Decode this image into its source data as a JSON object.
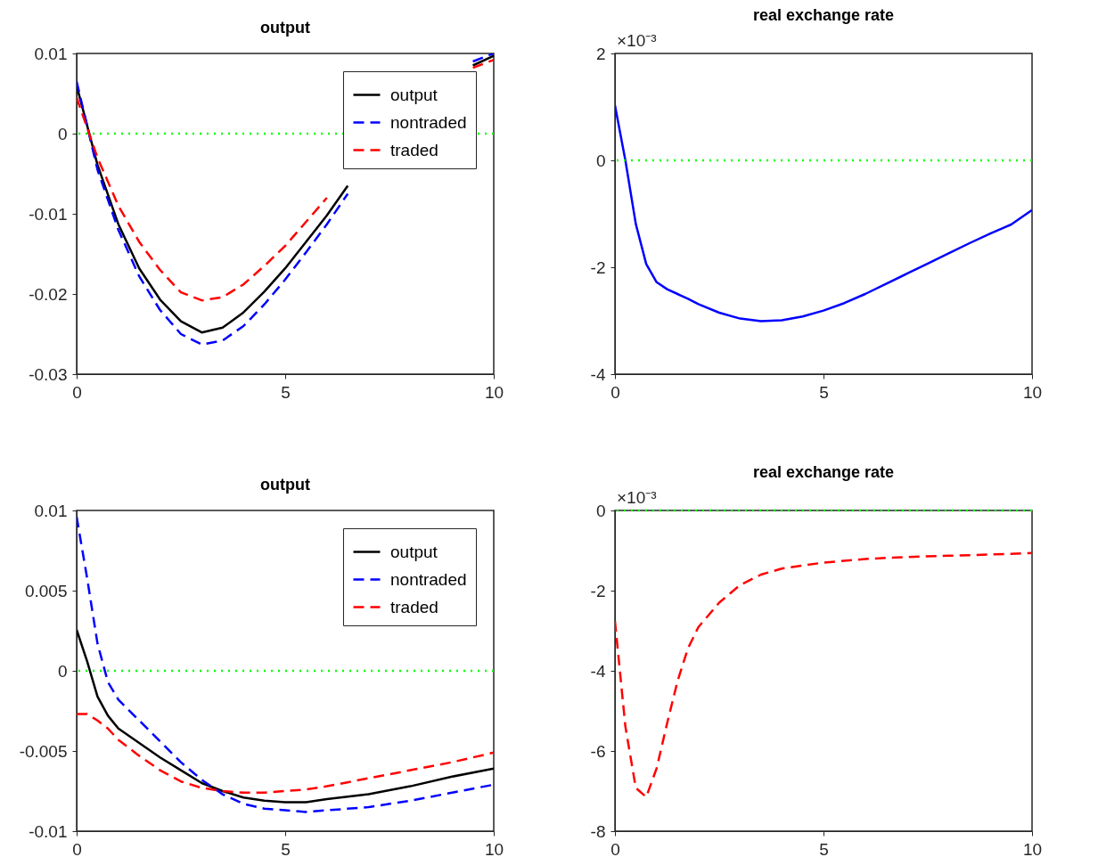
{
  "chart_data": [
    {
      "type": "line",
      "title": "output",
      "legend": "top right",
      "xlim": [
        0,
        10
      ],
      "xticks": [
        0,
        5,
        10
      ],
      "ylim": [
        -0.03,
        0.01
      ],
      "yticks": [
        -0.03,
        -0.02,
        -0.01,
        0,
        0.01
      ],
      "x": [
        0,
        0.5,
        1,
        1.5,
        2,
        2.5,
        3,
        3.5,
        4,
        4.5,
        5,
        5.5,
        6,
        6.5,
        7,
        7.5,
        8,
        8.5,
        9,
        9.5,
        10
      ],
      "series": [
        {
          "name": "output",
          "color": "#000000",
          "line_style": "solid",
          "values": [
            0.006,
            -0.0039,
            -0.0113,
            -0.0168,
            -0.0207,
            -0.0234,
            -0.0248,
            -0.0242,
            -0.0223,
            -0.0197,
            -0.0168,
            -0.0135,
            -0.0102,
            -0.0065,
            null,
            null,
            null,
            null,
            null,
            0.0085,
            0.0097
          ]
        },
        {
          "name": "nontraded",
          "color": "#0000ff",
          "line_style": "dashed",
          "values": [
            0.0065,
            -0.0045,
            -0.012,
            -0.0178,
            -0.022,
            -0.025,
            -0.0263,
            -0.0258,
            -0.024,
            -0.0213,
            -0.0182,
            -0.0148,
            -0.0113,
            -0.0075,
            null,
            null,
            null,
            null,
            null,
            0.009,
            0.01
          ]
        },
        {
          "name": "traded",
          "color": "#ff0000",
          "line_style": "dashed",
          "values": [
            0.0045,
            -0.003,
            -0.009,
            -0.0135,
            -0.017,
            -0.0198,
            -0.0208,
            -0.0204,
            -0.0188,
            -0.0165,
            -0.014,
            -0.011,
            -0.008,
            null,
            null,
            null,
            null,
            null,
            null,
            0.0082,
            0.0092
          ]
        }
      ],
      "ref_lines": [
        {
          "axis": "y",
          "value": 0,
          "color": "#00ff00",
          "line_style": "dotted"
        }
      ]
    },
    {
      "type": "line",
      "title": "real exchange rate",
      "annotations": [
        "×10⁻³"
      ],
      "xlim": [
        0,
        10
      ],
      "xticks": [
        0,
        5,
        10
      ],
      "ylim": [
        -4,
        2
      ],
      "yticks": [
        -4,
        -2,
        0,
        2
      ],
      "x": [
        0,
        0.25,
        0.5,
        0.75,
        1,
        1.25,
        1.5,
        1.75,
        2,
        2.5,
        3,
        3.5,
        4,
        4.5,
        5,
        5.5,
        6,
        6.5,
        7,
        7.5,
        8,
        8.5,
        9,
        9.5,
        10
      ],
      "series": [
        {
          "color": "#0000ff",
          "line_style": "solid",
          "values": [
            1.03,
            0,
            -1.19,
            -1.94,
            -2.28,
            -2.41,
            -2.5,
            -2.59,
            -2.69,
            -2.85,
            -2.96,
            -3.01,
            -2.99,
            -2.92,
            -2.81,
            -2.67,
            -2.5,
            -2.31,
            -2.12,
            -1.93,
            -1.74,
            -1.55,
            -1.37,
            -1.2,
            -0.93
          ]
        }
      ],
      "ref_lines": [
        {
          "axis": "y",
          "value": 0,
          "color": "#00ff00",
          "line_style": "dotted"
        }
      ]
    },
    {
      "type": "line",
      "title": "output",
      "legend": "top right",
      "xlim": [
        0,
        10
      ],
      "xticks": [
        0,
        5,
        10
      ],
      "ylim": [
        -0.01,
        0.01
      ],
      "yticks": [
        -0.01,
        -0.005,
        0,
        0.005,
        0.01
      ],
      "x": [
        0,
        0.25,
        0.5,
        0.75,
        1,
        1.5,
        2,
        2.5,
        3,
        3.5,
        4,
        4.5,
        5,
        5.5,
        6,
        7,
        8,
        9,
        10
      ],
      "series": [
        {
          "name": "output",
          "color": "#000000",
          "line_style": "solid",
          "values": [
            0.00256,
            0.0006,
            -0.0016,
            -0.0028,
            -0.0036,
            -0.0045,
            -0.0054,
            -0.0062,
            -0.007,
            -0.0075,
            -0.0079,
            -0.0081,
            -0.0082,
            -0.0082,
            -0.008,
            -0.0077,
            -0.0072,
            -0.0066,
            -0.0061
          ]
        },
        {
          "name": "nontraded",
          "color": "#0000ff",
          "line_style": "dashed",
          "values": [
            0.0096,
            0.0058,
            0.0017,
            -0.0007,
            -0.0018,
            -0.0031,
            -0.0044,
            -0.0057,
            -0.0068,
            -0.0077,
            -0.0083,
            -0.0086,
            -0.0087,
            -0.0088,
            -0.0087,
            -0.0085,
            -0.0081,
            -0.0076,
            -0.0071
          ]
        },
        {
          "name": "traded",
          "color": "#ff0000",
          "line_style": "dashed",
          "values": [
            -0.0027,
            -0.0027,
            -0.0031,
            -0.0036,
            -0.0043,
            -0.0053,
            -0.0062,
            -0.0069,
            -0.0073,
            -0.0075,
            -0.0076,
            -0.0076,
            -0.0075,
            -0.0074,
            -0.0072,
            -0.0067,
            -0.0062,
            -0.0057,
            -0.0051
          ]
        }
      ],
      "ref_lines": [
        {
          "axis": "y",
          "value": 0,
          "color": "#00ff00",
          "line_style": "dotted"
        }
      ]
    },
    {
      "type": "line",
      "title": "real exchange rate",
      "annotations": [
        "×10⁻³"
      ],
      "xlim": [
        0,
        10
      ],
      "xticks": [
        0,
        5,
        10
      ],
      "ylim": [
        -8,
        0
      ],
      "yticks": [
        -8,
        -6,
        -4,
        -2,
        0
      ],
      "x": [
        0,
        0.25,
        0.5,
        0.75,
        1,
        1.25,
        1.5,
        1.75,
        2,
        2.5,
        3,
        3.5,
        4,
        5,
        6,
        7,
        8,
        9,
        10
      ],
      "series": [
        {
          "color": "#ff0000",
          "line_style": "dashed",
          "values": [
            -2.76,
            -5.39,
            -6.92,
            -7.15,
            -6.43,
            -5.31,
            -4.26,
            -3.44,
            -2.91,
            -2.3,
            -1.86,
            -1.6,
            -1.45,
            -1.3,
            -1.21,
            -1.16,
            -1.13,
            -1.1,
            -1.06
          ]
        }
      ],
      "ref_lines": [
        {
          "axis": "y",
          "value": 0,
          "color": "#00ff00",
          "line_style": "dotted"
        }
      ]
    }
  ]
}
